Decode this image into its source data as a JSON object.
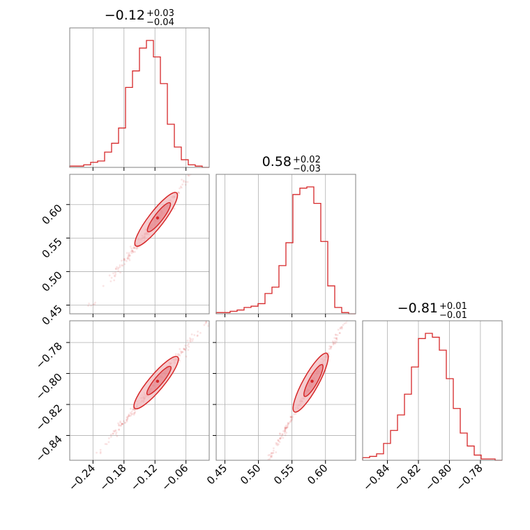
{
  "chart_data": {
    "type": "corner",
    "grid": true,
    "colors": {
      "accent": "#d62728",
      "fill": "#f1b6ba",
      "grid": "#b0b0b0",
      "spine": "#808080"
    },
    "parameters": [
      {
        "range": [
          -0.285,
          -0.015
        ]
      },
      {
        "range": [
          0.437,
          0.645
        ]
      },
      {
        "range": [
          -0.856,
          -0.766
        ]
      }
    ],
    "titles": [
      {
        "median": "−0.12",
        "plus": "+0.03",
        "minus": "−0.04"
      },
      {
        "median": "0.58",
        "plus": "+0.02",
        "minus": "−0.03"
      },
      {
        "median": "−0.81",
        "plus": "+0.01",
        "minus": "−0.01"
      }
    ],
    "ticks": [
      {
        "values": [
          -0.24,
          -0.18,
          -0.12,
          -0.06
        ],
        "labels": [
          "−0.24",
          "−0.18",
          "−0.12",
          "−0.06"
        ]
      },
      {
        "values": [
          0.45,
          0.5,
          0.55,
          0.6
        ],
        "labels": [
          "0.45",
          "0.50",
          "0.55",
          "0.60"
        ]
      },
      {
        "values": [
          -0.84,
          -0.82,
          -0.8,
          -0.78
        ],
        "labels": [
          "−0.84",
          "−0.82",
          "−0.80",
          "−0.78"
        ]
      }
    ],
    "histograms": [
      {
        "edges": [
          -0.285,
          -0.2715,
          -0.258,
          -0.2445,
          -0.231,
          -0.2175,
          -0.204,
          -0.1905,
          -0.177,
          -0.1635,
          -0.15,
          -0.1365,
          -0.123,
          -0.1095,
          -0.096,
          -0.0825,
          -0.069,
          -0.0555,
          -0.042,
          -0.0285,
          -0.015
        ],
        "counts": [
          0.01,
          0.01,
          0.02,
          0.04,
          0.05,
          0.12,
          0.19,
          0.31,
          0.63,
          0.76,
          0.94,
          1.0,
          0.87,
          0.66,
          0.34,
          0.16,
          0.06,
          0.02,
          0.01,
          0.0
        ]
      },
      {
        "edges": [
          0.437,
          0.4474,
          0.4578,
          0.4682,
          0.4786,
          0.489,
          0.4994,
          0.5098,
          0.5202,
          0.5306,
          0.541,
          0.5514,
          0.5618,
          0.5722,
          0.5826,
          0.593,
          0.6034,
          0.6138,
          0.6242,
          0.6346,
          0.645
        ],
        "counts": [
          0.01,
          0.01,
          0.02,
          0.03,
          0.05,
          0.06,
          0.08,
          0.16,
          0.21,
          0.38,
          0.56,
          0.94,
          0.99,
          1.0,
          0.87,
          0.57,
          0.22,
          0.05,
          0.01,
          0.0
        ]
      },
      {
        "edges": [
          -0.856,
          -0.8515,
          -0.847,
          -0.8425,
          -0.838,
          -0.8335,
          -0.829,
          -0.8245,
          -0.82,
          -0.8155,
          -0.811,
          -0.8065,
          -0.802,
          -0.7975,
          -0.793,
          -0.7885,
          -0.784,
          -0.7795,
          -0.775,
          -0.7705,
          -0.766
        ],
        "counts": [
          0.02,
          0.03,
          0.05,
          0.13,
          0.23,
          0.35,
          0.51,
          0.72,
          0.94,
          0.98,
          0.95,
          0.85,
          0.63,
          0.4,
          0.21,
          0.11,
          0.04,
          0.01,
          0.01,
          0.0
        ]
      }
    ]
  }
}
